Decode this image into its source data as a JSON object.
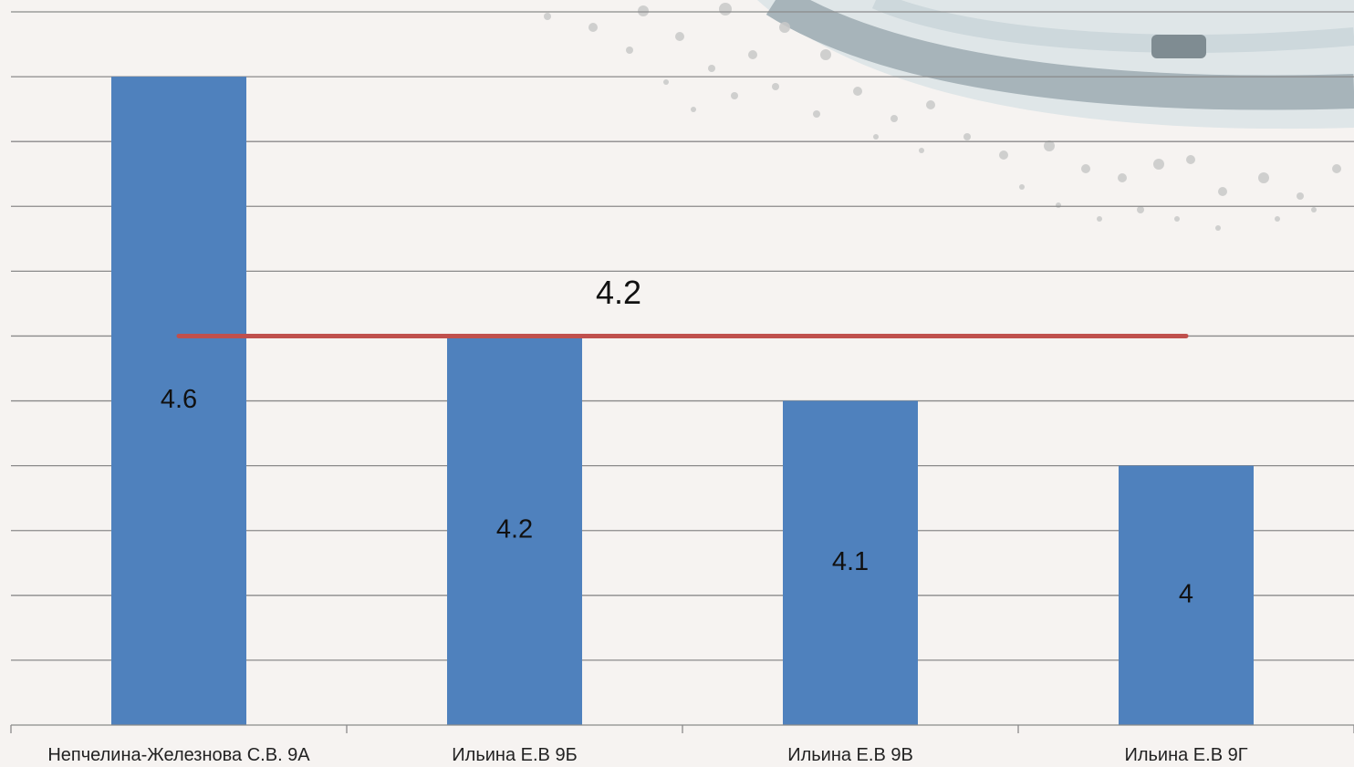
{
  "colors": {
    "bar": "#4f81bd",
    "average_line": "#c0504d",
    "grid": "#8a8a8a",
    "background": "#f6f3f1"
  },
  "chart_data": {
    "type": "bar",
    "categories": [
      "Непчелина-Железнова С.В. 9А",
      "Ильина Е.В 9Б",
      "Ильина Е.В 9В",
      "Ильина Е.В 9Г"
    ],
    "values": [
      4.6,
      4.2,
      4.1,
      4
    ],
    "data_labels": [
      "4.6",
      "4.2",
      "4.1",
      "4"
    ],
    "average": {
      "value": 4.2,
      "label": "4.2"
    },
    "ylim": [
      3.6,
      4.7
    ],
    "grid": true,
    "legend": "none",
    "title": "",
    "xlabel": "",
    "ylabel": ""
  }
}
